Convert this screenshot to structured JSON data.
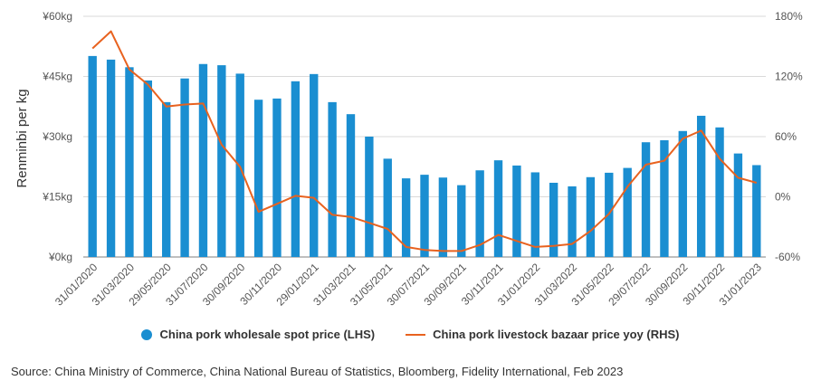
{
  "colors": {
    "bar": "#1a8ed1",
    "line": "#e8621f",
    "grid": "#d9d9d9",
    "axis": "#7f7f7f"
  },
  "chart_data": {
    "type": "bar",
    "title": "",
    "xlabel": "",
    "ylabel": "Renminbi per kg",
    "ylim": [
      0,
      60
    ],
    "y2lim": [
      -60,
      180
    ],
    "y_ticks": [
      "¥0kg",
      "¥15kg",
      "¥30kg",
      "¥45kg",
      "¥60kg"
    ],
    "y2_ticks": [
      "-60%",
      "0%",
      "60%",
      "120%",
      "180%"
    ],
    "x_tick_labels": [
      "31/01/2020",
      "31/03/2020",
      "29/05/2020",
      "31/07/2020",
      "30/09/2020",
      "30/11/2020",
      "29/01/2021",
      "31/03/2021",
      "31/05/2021",
      "30/07/2021",
      "30/09/2021",
      "30/11/2021",
      "31/01/2022",
      "31/03/2022",
      "31/05/2022",
      "29/07/2022",
      "30/09/2022",
      "30/11/2022",
      "31/01/2023"
    ],
    "series": [
      {
        "name": "China pork wholesale spot price (LHS)",
        "type": "bar",
        "axis": "left",
        "values": [
          50.1,
          49.2,
          47.3,
          44.0,
          38.6,
          44.5,
          48.1,
          47.8,
          45.7,
          39.2,
          39.5,
          43.8,
          45.6,
          38.6,
          35.6,
          30.0,
          24.5,
          19.6,
          20.5,
          19.8,
          17.9,
          21.6,
          24.1,
          22.8,
          21.1,
          18.5,
          17.6,
          19.9,
          21.0,
          22.2,
          28.6,
          29.1,
          31.4,
          35.2,
          32.3,
          25.8,
          22.9
        ]
      },
      {
        "name": "China pork livestock bazaar price yoy (RHS)",
        "type": "line",
        "axis": "right",
        "values": [
          148,
          165,
          127,
          112,
          90,
          92,
          93,
          52,
          30,
          -15,
          -7,
          1,
          -1,
          -18,
          -20,
          -26,
          -32,
          -50,
          -53,
          -54,
          -54,
          -48,
          -38,
          -44,
          -50,
          -49,
          -47,
          -34,
          -17,
          10,
          32,
          36,
          58,
          66,
          38,
          19,
          14
        ]
      }
    ],
    "legend_position": "bottom"
  },
  "legend": {
    "bar_label": "China pork wholesale spot price (LHS)",
    "line_label": "China pork livestock bazaar price yoy (RHS)"
  },
  "source": "Source: China Ministry of Commerce, China National Bureau of Statistics, Bloomberg, Fidelity International, Feb 2023"
}
